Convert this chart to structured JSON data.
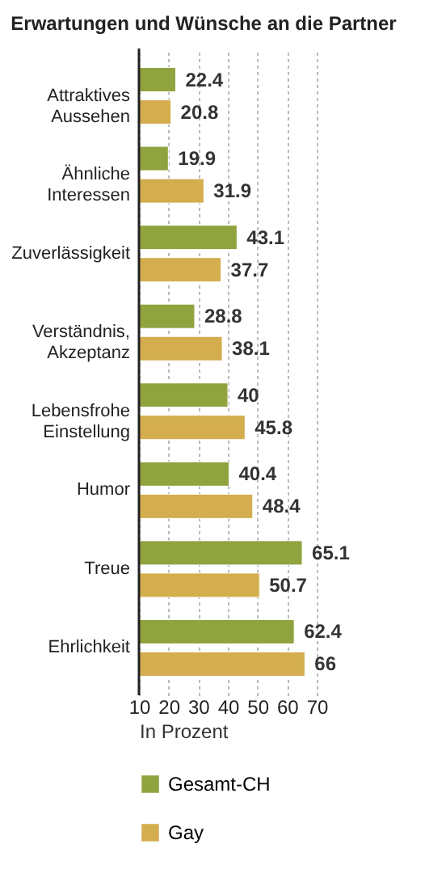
{
  "chart_data": {
    "type": "bar",
    "orientation": "horizontal",
    "title": "Erwartungen und Wünsche an die Partner",
    "categories": [
      "Attraktives Aussehen",
      "Ähnliche Interessen",
      "Zuverlässigkeit",
      "Verständnis, Akzeptanz",
      "Lebensfrohe Einstellung",
      "Humor",
      "Treue",
      "Ehrlichkeit"
    ],
    "series": [
      {
        "name": "Gesamt-CH",
        "color": "#8fa33f",
        "values": [
          22.4,
          19.9,
          43.1,
          28.8,
          40,
          40.4,
          65.1,
          62.4
        ]
      },
      {
        "name": "Gay",
        "color": "#d3ad4e",
        "values": [
          20.8,
          31.9,
          37.7,
          38.1,
          45.8,
          48.4,
          50.7,
          66
        ]
      }
    ],
    "xlabel": "In Prozent",
    "xlim": [
      10,
      70
    ],
    "xticks": [
      10,
      20,
      30,
      40,
      50,
      60,
      70
    ],
    "grid": "x",
    "data_labels": true,
    "legend": "bottom left"
  }
}
